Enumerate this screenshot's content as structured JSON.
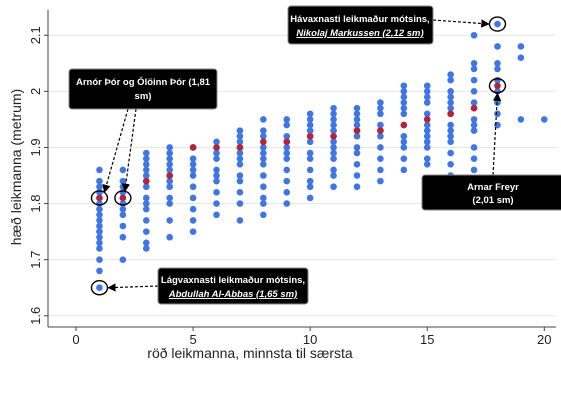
{
  "chart_data": {
    "type": "scatter",
    "xlabel": "röð leikmanna, minnsta til særsta",
    "ylabel": "hæð leikmanna (metrum)",
    "xlim": [
      -0.6,
      20.5
    ],
    "ylim": [
      1.58,
      2.145
    ],
    "x_ticks": [
      "0",
      "5",
      "10",
      "15",
      "20"
    ],
    "y_ticks": [
      "1.6",
      "1.7",
      "1.8",
      "1.9",
      "2",
      "2.1"
    ],
    "colors": {
      "points": "#3f76e4",
      "median": "#b3243a",
      "box": "#000000"
    },
    "series": [
      {
        "role": "players",
        "points": [
          [
            1,
            1.65
          ],
          [
            1,
            1.68
          ],
          [
            1,
            1.7
          ],
          [
            1,
            1.72
          ],
          [
            1,
            1.73
          ],
          [
            1,
            1.74
          ],
          [
            1,
            1.75
          ],
          [
            1,
            1.76
          ],
          [
            1,
            1.77
          ],
          [
            1,
            1.78
          ],
          [
            1,
            1.79
          ],
          [
            1,
            1.8
          ],
          [
            1,
            1.81
          ],
          [
            1,
            1.82
          ],
          [
            1,
            1.83
          ],
          [
            1,
            1.84
          ],
          [
            1,
            1.86
          ],
          [
            2,
            1.7
          ],
          [
            2,
            1.74
          ],
          [
            2,
            1.76
          ],
          [
            2,
            1.78
          ],
          [
            2,
            1.79
          ],
          [
            2,
            1.8
          ],
          [
            2,
            1.81
          ],
          [
            2,
            1.82
          ],
          [
            2,
            1.83
          ],
          [
            2,
            1.84
          ],
          [
            2,
            1.86
          ],
          [
            3,
            1.72
          ],
          [
            3,
            1.73
          ],
          [
            3,
            1.75
          ],
          [
            3,
            1.77
          ],
          [
            3,
            1.79
          ],
          [
            3,
            1.8
          ],
          [
            3,
            1.81
          ],
          [
            3,
            1.83
          ],
          [
            3,
            1.84
          ],
          [
            3,
            1.85
          ],
          [
            3,
            1.86
          ],
          [
            3,
            1.87
          ],
          [
            3,
            1.88
          ],
          [
            3,
            1.89
          ],
          [
            4,
            1.74
          ],
          [
            4,
            1.77
          ],
          [
            4,
            1.8
          ],
          [
            4,
            1.81
          ],
          [
            4,
            1.83
          ],
          [
            4,
            1.84
          ],
          [
            4,
            1.85
          ],
          [
            4,
            1.86
          ],
          [
            4,
            1.87
          ],
          [
            4,
            1.88
          ],
          [
            4,
            1.89
          ],
          [
            4,
            1.9
          ],
          [
            5,
            1.75
          ],
          [
            5,
            1.77
          ],
          [
            5,
            1.79
          ],
          [
            5,
            1.81
          ],
          [
            5,
            1.83
          ],
          [
            5,
            1.85
          ],
          [
            5,
            1.86
          ],
          [
            5,
            1.87
          ],
          [
            5,
            1.88
          ],
          [
            5,
            1.9
          ],
          [
            6,
            1.78
          ],
          [
            6,
            1.8
          ],
          [
            6,
            1.82
          ],
          [
            6,
            1.84
          ],
          [
            6,
            1.85
          ],
          [
            6,
            1.86
          ],
          [
            6,
            1.88
          ],
          [
            6,
            1.89
          ],
          [
            6,
            1.9
          ],
          [
            6,
            1.91
          ],
          [
            7,
            1.77
          ],
          [
            7,
            1.8
          ],
          [
            7,
            1.82
          ],
          [
            7,
            1.84
          ],
          [
            7,
            1.85
          ],
          [
            7,
            1.87
          ],
          [
            7,
            1.88
          ],
          [
            7,
            1.89
          ],
          [
            7,
            1.9
          ],
          [
            7,
            1.91
          ],
          [
            7,
            1.92
          ],
          [
            7,
            1.93
          ],
          [
            8,
            1.78
          ],
          [
            8,
            1.8
          ],
          [
            8,
            1.81
          ],
          [
            8,
            1.83
          ],
          [
            8,
            1.85
          ],
          [
            8,
            1.87
          ],
          [
            8,
            1.88
          ],
          [
            8,
            1.89
          ],
          [
            8,
            1.9
          ],
          [
            8,
            1.92
          ],
          [
            8,
            1.93
          ],
          [
            8,
            1.95
          ],
          [
            9,
            1.8
          ],
          [
            9,
            1.82
          ],
          [
            9,
            1.84
          ],
          [
            9,
            1.86
          ],
          [
            9,
            1.88
          ],
          [
            9,
            1.89
          ],
          [
            9,
            1.9
          ],
          [
            9,
            1.91
          ],
          [
            9,
            1.92
          ],
          [
            9,
            1.94
          ],
          [
            9,
            1.95
          ],
          [
            10,
            1.81
          ],
          [
            10,
            1.83
          ],
          [
            10,
            1.84
          ],
          [
            10,
            1.86
          ],
          [
            10,
            1.88
          ],
          [
            10,
            1.89
          ],
          [
            10,
            1.91
          ],
          [
            10,
            1.92
          ],
          [
            10,
            1.93
          ],
          [
            10,
            1.94
          ],
          [
            10,
            1.95
          ],
          [
            10,
            1.96
          ],
          [
            11,
            1.83
          ],
          [
            11,
            1.85
          ],
          [
            11,
            1.86
          ],
          [
            11,
            1.88
          ],
          [
            11,
            1.89
          ],
          [
            11,
            1.9
          ],
          [
            11,
            1.91
          ],
          [
            11,
            1.93
          ],
          [
            11,
            1.94
          ],
          [
            11,
            1.95
          ],
          [
            11,
            1.96
          ],
          [
            11,
            1.97
          ],
          [
            12,
            1.83
          ],
          [
            12,
            1.85
          ],
          [
            12,
            1.87
          ],
          [
            12,
            1.89
          ],
          [
            12,
            1.9
          ],
          [
            12,
            1.92
          ],
          [
            12,
            1.93
          ],
          [
            12,
            1.94
          ],
          [
            12,
            1.95
          ],
          [
            12,
            1.96
          ],
          [
            12,
            1.97
          ],
          [
            13,
            1.84
          ],
          [
            13,
            1.86
          ],
          [
            13,
            1.88
          ],
          [
            13,
            1.9
          ],
          [
            13,
            1.92
          ],
          [
            13,
            1.93
          ],
          [
            13,
            1.94
          ],
          [
            13,
            1.96
          ],
          [
            13,
            1.97
          ],
          [
            13,
            1.98
          ],
          [
            14,
            1.86
          ],
          [
            14,
            1.88
          ],
          [
            14,
            1.9
          ],
          [
            14,
            1.91
          ],
          [
            14,
            1.92
          ],
          [
            14,
            1.94
          ],
          [
            14,
            1.96
          ],
          [
            14,
            1.97
          ],
          [
            14,
            1.98
          ],
          [
            14,
            1.99
          ],
          [
            14,
            2.0
          ],
          [
            14,
            2.01
          ],
          [
            15,
            1.87
          ],
          [
            15,
            1.88
          ],
          [
            15,
            1.9
          ],
          [
            15,
            1.91
          ],
          [
            15,
            1.92
          ],
          [
            15,
            1.93
          ],
          [
            15,
            1.94
          ],
          [
            15,
            1.95
          ],
          [
            15,
            1.96
          ],
          [
            15,
            1.98
          ],
          [
            15,
            1.99
          ],
          [
            15,
            2.0
          ],
          [
            15,
            2.01
          ],
          [
            16,
            1.85
          ],
          [
            16,
            1.87
          ],
          [
            16,
            1.89
          ],
          [
            16,
            1.91
          ],
          [
            16,
            1.92
          ],
          [
            16,
            1.93
          ],
          [
            16,
            1.94
          ],
          [
            16,
            1.96
          ],
          [
            16,
            1.97
          ],
          [
            16,
            1.98
          ],
          [
            16,
            1.99
          ],
          [
            16,
            2.0
          ],
          [
            16,
            2.02
          ],
          [
            16,
            2.03
          ],
          [
            17,
            1.86
          ],
          [
            17,
            1.88
          ],
          [
            17,
            1.9
          ],
          [
            17,
            1.93
          ],
          [
            17,
            1.94
          ],
          [
            17,
            1.95
          ],
          [
            17,
            1.97
          ],
          [
            17,
            1.98
          ],
          [
            17,
            2.0
          ],
          [
            17,
            2.02
          ],
          [
            17,
            2.04
          ],
          [
            17,
            2.05
          ],
          [
            17,
            2.1
          ],
          [
            18,
            1.94
          ],
          [
            18,
            1.96
          ],
          [
            18,
            1.98
          ],
          [
            18,
            2.0
          ],
          [
            18,
            2.02
          ],
          [
            18,
            2.04
          ],
          [
            18,
            2.05
          ],
          [
            18,
            2.08
          ],
          [
            18,
            2.12
          ],
          [
            19,
            1.95
          ],
          [
            19,
            2.06
          ],
          [
            19,
            2.08
          ],
          [
            20,
            1.95
          ]
        ]
      },
      {
        "role": "medians",
        "points": [
          [
            1,
            1.81
          ],
          [
            2,
            1.81
          ],
          [
            3,
            1.84
          ],
          [
            4,
            1.85
          ],
          [
            5,
            1.9
          ],
          [
            6,
            1.9
          ],
          [
            7,
            1.9
          ],
          [
            8,
            1.91
          ],
          [
            9,
            1.91
          ],
          [
            10,
            1.92
          ],
          [
            11,
            1.92
          ],
          [
            12,
            1.93
          ],
          [
            13,
            1.93
          ],
          [
            14,
            1.94
          ],
          [
            15,
            1.95
          ],
          [
            16,
            1.96
          ],
          [
            17,
            1.97
          ],
          [
            18,
            2.01
          ]
        ]
      }
    ],
    "highlights": [
      {
        "x": 1,
        "y": 1.81
      },
      {
        "x": 2,
        "y": 1.81
      },
      {
        "x": 1,
        "y": 1.65
      },
      {
        "x": 18,
        "y": 2.12
      },
      {
        "x": 18,
        "y": 2.01
      }
    ],
    "annotations": [
      {
        "id": "tallest",
        "lines": [
          "Hávaxnasti leikmaður mótsins,",
          "Nikolaj Markussen (2,12 sm)"
        ],
        "targets": [
          3
        ]
      },
      {
        "id": "arnor",
        "lines": [
          "Arnór Þór og Ólöinn Þór (1,81",
          "sm)"
        ],
        "targets": [
          0,
          1
        ]
      },
      {
        "id": "arnar",
        "lines": [
          "Arnar Freyr",
          "(2,01 sm)"
        ],
        "targets": [
          4
        ]
      },
      {
        "id": "shortest",
        "lines": [
          "Lágvaxnasti leikmaður mótsins,",
          "Abdullah Al-Abbas (1,65 sm)"
        ],
        "targets": [
          2
        ]
      }
    ]
  }
}
